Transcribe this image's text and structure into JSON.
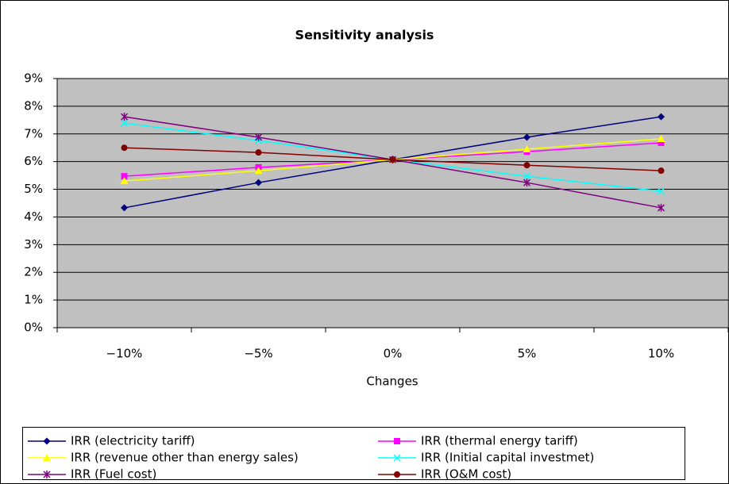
{
  "chart_data": {
    "type": "line",
    "title": "Sensitivity analysis",
    "x_label": "Changes",
    "categories": [
      "−10%",
      "−5%",
      "0%",
      "5%",
      "10%"
    ],
    "ylim": [
      0,
      9
    ],
    "yticks": [
      {
        "value": 0,
        "label": "0%"
      },
      {
        "value": 1,
        "label": "1%"
      },
      {
        "value": 2,
        "label": "2%"
      },
      {
        "value": 3,
        "label": "3%"
      },
      {
        "value": 4,
        "label": "4%"
      },
      {
        "value": 5,
        "label": "5%"
      },
      {
        "value": 6,
        "label": "6%"
      },
      {
        "value": 7,
        "label": "7%"
      },
      {
        "value": 8,
        "label": "8%"
      },
      {
        "value": 9,
        "label": "9%"
      }
    ],
    "grid": true,
    "plot_background": "#c0c0c0",
    "legend": "bottom",
    "series": [
      {
        "name": "IRR (electricity tariff)",
        "color": "#000080",
        "marker": "diamond",
        "values": [
          4.33,
          5.24,
          6.07,
          6.88,
          7.62
        ]
      },
      {
        "name": "IRR (thermal energy tariff)",
        "color": "#ff00ff",
        "marker": "square",
        "values": [
          5.47,
          5.79,
          6.07,
          6.36,
          6.68
        ]
      },
      {
        "name": "IRR (revenue other than energy sales)",
        "color": "#ffff00",
        "marker": "triangle",
        "values": [
          5.3,
          5.67,
          6.07,
          6.45,
          6.82
        ]
      },
      {
        "name": "IRR (Initial capital investmet)",
        "color": "#00ffff",
        "marker": "x",
        "values": [
          7.39,
          6.76,
          6.07,
          5.47,
          4.93
        ]
      },
      {
        "name": "IRR (Fuel cost)",
        "color": "#800080",
        "marker": "star",
        "values": [
          7.62,
          6.88,
          6.07,
          5.24,
          4.33
        ]
      },
      {
        "name": "IRR (O&M cost)",
        "color": "#800000",
        "marker": "circle",
        "values": [
          6.5,
          6.33,
          6.07,
          5.87,
          5.67
        ]
      }
    ]
  }
}
